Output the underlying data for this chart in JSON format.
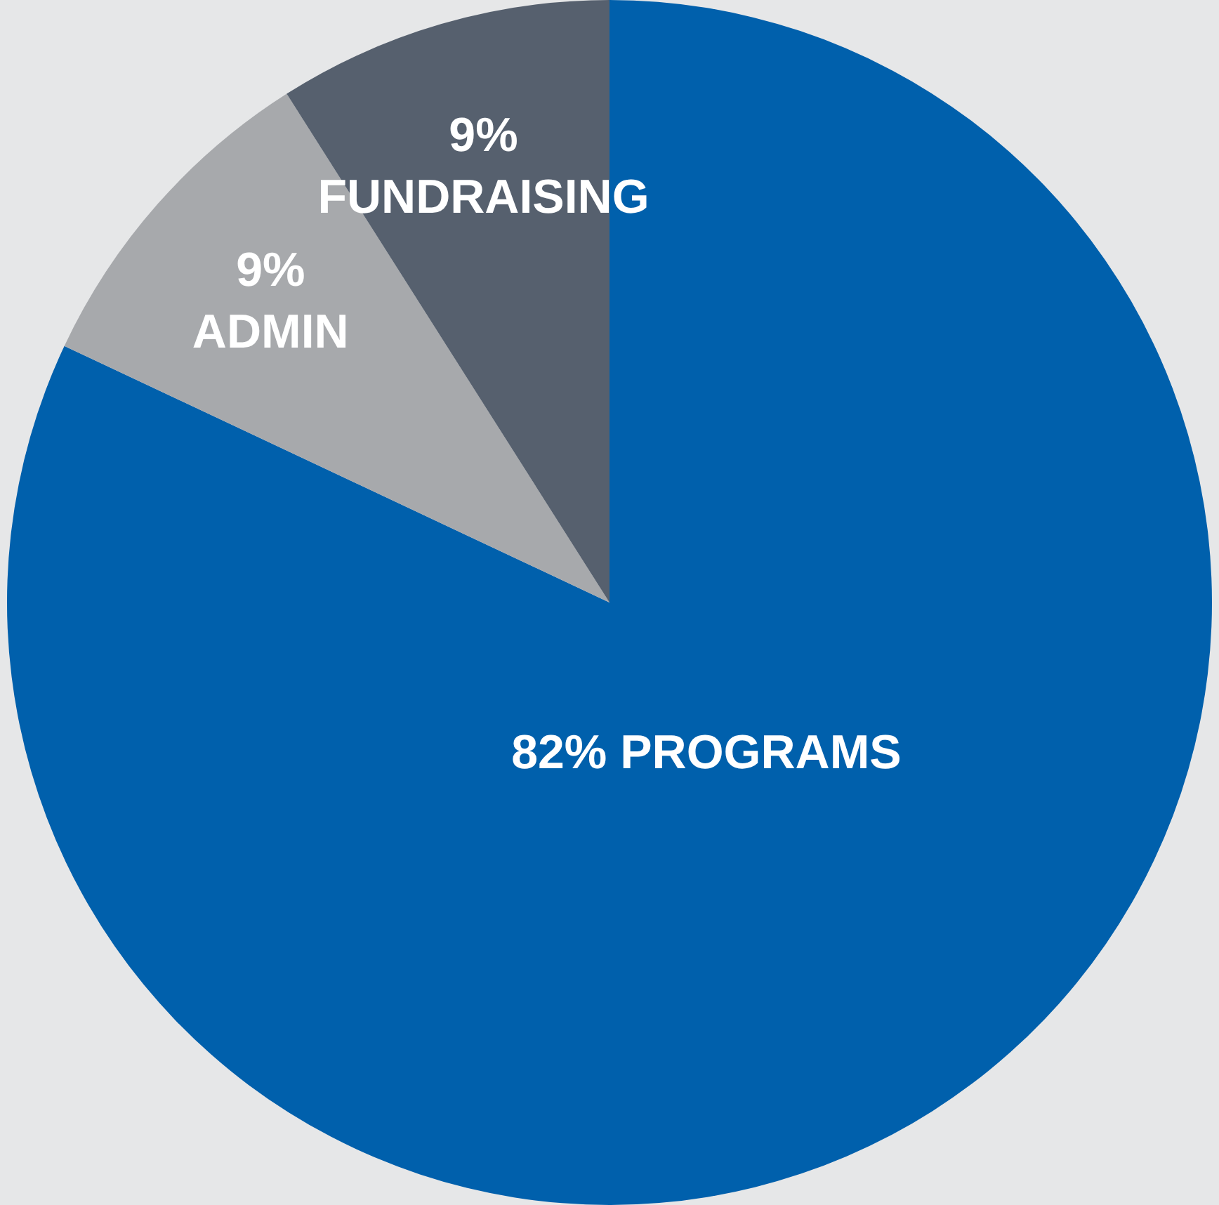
{
  "chart_data": {
    "type": "pie",
    "categories": [
      "PROGRAMS",
      "ADMIN",
      "FUNDRAISING"
    ],
    "values": [
      82,
      9,
      9
    ],
    "colors": [
      "#0060ac",
      "#a7a9ac",
      "#56606e"
    ],
    "value_labels": [
      "82%",
      "9%",
      "9%"
    ],
    "legend": false
  }
}
